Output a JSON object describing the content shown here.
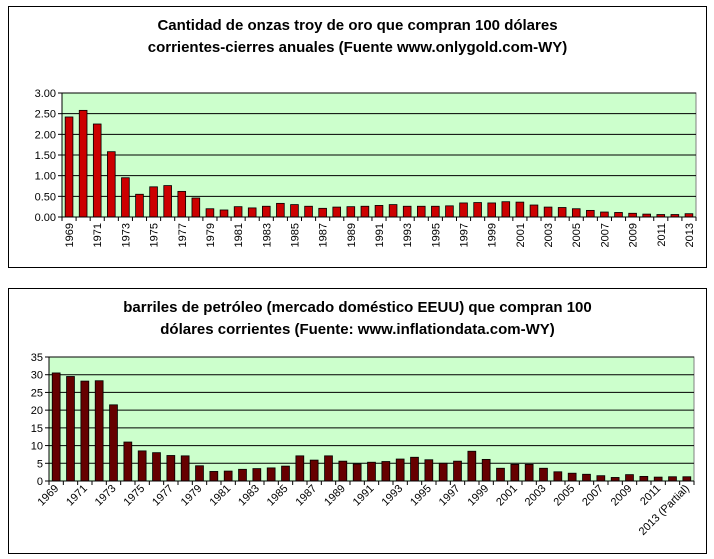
{
  "chart_data": [
    {
      "type": "bar",
      "title_line1": "Cantidad de onzas troy de oro que compran 100 dólares",
      "title_line2": "corrientes-cierres anuales (Fuente www.onlygold.com-WY)",
      "xlabel": "",
      "ylabel": "",
      "ylim": [
        0,
        3.0
      ],
      "yticks": [
        "0.00",
        "0.50",
        "1.00",
        "1.50",
        "2.00",
        "2.50",
        "3.00"
      ],
      "grid": true,
      "plot_bg": "#ccffcc",
      "bar_color": "#cc0000",
      "categories": [
        "1969",
        "1970",
        "1971",
        "1972",
        "1973",
        "1974",
        "1975",
        "1976",
        "1977",
        "1978",
        "1979",
        "1980",
        "1981",
        "1982",
        "1983",
        "1984",
        "1985",
        "1986",
        "1987",
        "1988",
        "1989",
        "1990",
        "1991",
        "1992",
        "1993",
        "1994",
        "1995",
        "1996",
        "1997",
        "1998",
        "1999",
        "2000",
        "2001",
        "2002",
        "2003",
        "2004",
        "2005",
        "2006",
        "2007",
        "2008",
        "2009",
        "2010",
        "2011",
        "2012",
        "2013"
      ],
      "tick_labels": [
        "1969",
        "",
        "1971",
        "",
        "1973",
        "",
        "1975",
        "",
        "1977",
        "",
        "1979",
        "",
        "1981",
        "",
        "1983",
        "",
        "1985",
        "",
        "1987",
        "",
        "1989",
        "",
        "1991",
        "",
        "1993",
        "",
        "1995",
        "",
        "1997",
        "",
        "1999",
        "",
        "2001",
        "",
        "2003",
        "",
        "2005",
        "",
        "2007",
        "",
        "2009",
        "",
        "2011",
        "",
        "2013"
      ],
      "values": [
        2.42,
        2.58,
        2.25,
        1.58,
        0.95,
        0.55,
        0.73,
        0.76,
        0.62,
        0.46,
        0.2,
        0.17,
        0.25,
        0.22,
        0.26,
        0.33,
        0.3,
        0.26,
        0.21,
        0.24,
        0.25,
        0.26,
        0.28,
        0.3,
        0.26,
        0.26,
        0.26,
        0.27,
        0.34,
        0.35,
        0.34,
        0.37,
        0.36,
        0.29,
        0.24,
        0.23,
        0.2,
        0.16,
        0.12,
        0.11,
        0.09,
        0.07,
        0.06,
        0.06,
        0.08
      ]
    },
    {
      "type": "bar",
      "title_line1": "barriles de petróleo (mercado doméstico EEUU) que compran 100",
      "title_line2": "dólares corrientes (Fuente: www.inflationdata.com-WY)",
      "xlabel": "",
      "ylabel": "",
      "ylim": [
        0,
        35
      ],
      "yticks": [
        "0",
        "5",
        "10",
        "15",
        "20",
        "25",
        "30",
        "35"
      ],
      "grid": true,
      "plot_bg": "#ccffcc",
      "bar_color": "#660000",
      "categories": [
        "1969",
        "1970",
        "1971",
        "1972",
        "1973",
        "1974",
        "1975",
        "1976",
        "1977",
        "1978",
        "1979",
        "1980",
        "1981",
        "1982",
        "1983",
        "1984",
        "1985",
        "1986",
        "1987",
        "1988",
        "1989",
        "1990",
        "1991",
        "1992",
        "1993",
        "1994",
        "1995",
        "1996",
        "1997",
        "1998",
        "1999",
        "2000",
        "2001",
        "2002",
        "2003",
        "2004",
        "2005",
        "2006",
        "2007",
        "2008",
        "2009",
        "2010",
        "2011",
        "2012",
        "2013 (Partial)"
      ],
      "tick_labels": [
        "1969",
        "",
        "1971",
        "",
        "1973",
        "",
        "1975",
        "",
        "1977",
        "",
        "1979",
        "",
        "1981",
        "",
        "1983",
        "",
        "1985",
        "",
        "1987",
        "",
        "1989",
        "",
        "1991",
        "",
        "1993",
        "",
        "1995",
        "",
        "1997",
        "",
        "1999",
        "",
        "2001",
        "",
        "2003",
        "",
        "2005",
        "",
        "2007",
        "",
        "2009",
        "",
        "2011",
        "",
        "2013 (Partial)"
      ],
      "values": [
        30.5,
        29.5,
        28.2,
        28.3,
        21.5,
        11.0,
        8.5,
        8.0,
        7.2,
        7.1,
        4.3,
        2.7,
        2.8,
        3.3,
        3.5,
        3.7,
        4.2,
        7.1,
        5.9,
        7.1,
        5.6,
        4.8,
        5.3,
        5.5,
        6.2,
        6.7,
        6.0,
        5.0,
        5.6,
        8.4,
        6.1,
        3.6,
        4.7,
        4.7,
        3.6,
        2.6,
        2.2,
        1.9,
        1.5,
        1.0,
        1.8,
        1.3,
        1.1,
        1.2,
        1.2
      ]
    }
  ]
}
